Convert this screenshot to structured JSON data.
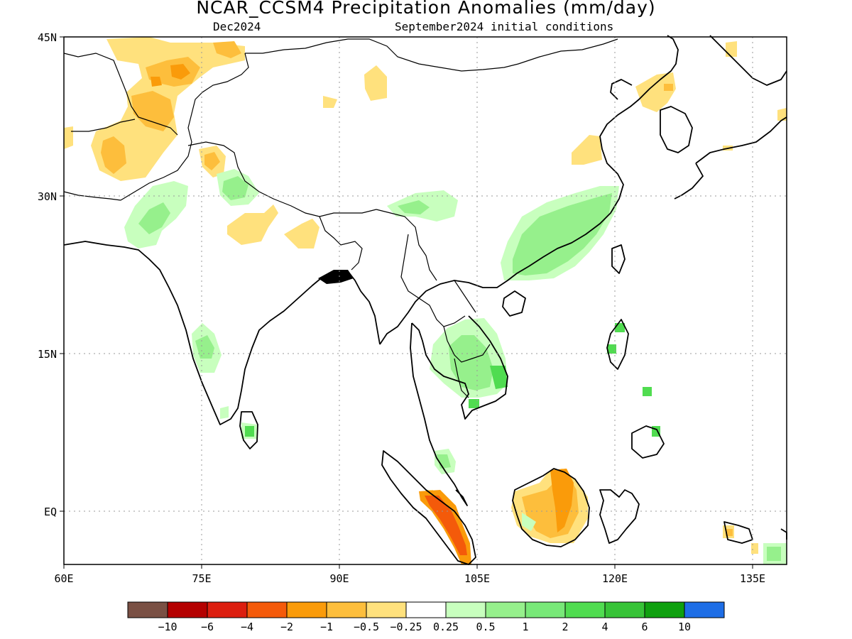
{
  "title": "NCAR_CCSM4 Precipitation Anomalies (mm/day)",
  "subtitle_left": "Dec2024",
  "subtitle_right": "September2024 initial conditions",
  "map": {
    "lon_range": [
      60,
      140
    ],
    "lat_range": [
      -5,
      45
    ],
    "lat_labels": [
      "45N",
      "30N",
      "15N",
      "EQ"
    ],
    "lon_labels": [
      "60E",
      "75E",
      "90E",
      "105E",
      "120E",
      "135E"
    ],
    "grid": "dotted"
  },
  "colorbar": {
    "colors": [
      "#7a5044",
      "#b40000",
      "#dc1e0f",
      "#f45a0a",
      "#fa9b0a",
      "#fdbe3c",
      "#ffe17d",
      "#ffffff",
      "#c8ffbe",
      "#96f08c",
      "#78e878",
      "#50dc50",
      "#37c337",
      "#0fa00f",
      "#1e6ee6"
    ],
    "labels": [
      "-10",
      "-6",
      "-4",
      "-2",
      "-1",
      "-0.5",
      "-0.25",
      "0.25",
      "0.5",
      "1",
      "2",
      "4",
      "6",
      "10"
    ]
  }
}
